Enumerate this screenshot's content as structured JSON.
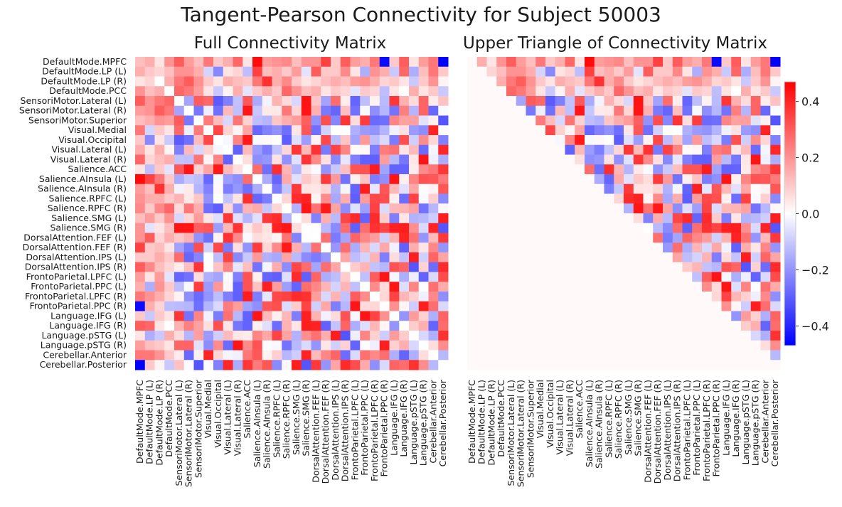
{
  "figure": {
    "title": "Tangent-Pearson Connectivity for Subject 50003"
  },
  "colors": {
    "negative": "#0000ff",
    "zero": "#ffffff",
    "positive": "#ff0000"
  },
  "chart_data": [
    {
      "type": "heatmap",
      "title": "Full Connectivity Matrix",
      "labels": [
        "DefaultMode.MPFC",
        "DefaultMode.LP (L)",
        "DefaultMode.LP (R)",
        "DefaultMode.PCC",
        "SensoriMotor.Lateral (L)",
        "SensoriMotor.Lateral (R)",
        "SensoriMotor.Superior",
        "Visual.Medial",
        "Visual.Occipital",
        "Visual.Lateral (L)",
        "Visual.Lateral (R)",
        "Salience.ACC",
        "Salience.AInsula (L)",
        "Salience.AInsula (R)",
        "Salience.RPFC (L)",
        "Salience.RPFC (R)",
        "Salience.SMG (L)",
        "Salience.SMG (R)",
        "DorsalAttention.FEF (L)",
        "DorsalAttention.FEF (R)",
        "DorsalAttention.IPS (L)",
        "DorsalAttention.IPS (R)",
        "FrontoParietal.LPFC (L)",
        "FrontoParietal.PPC (L)",
        "FrontoParietal.LPFC (R)",
        "FrontoParietal.PPC (R)",
        "Language.IFG (L)",
        "Language.IFG (R)",
        "Language.pSTG (L)",
        "Language.pSTG (R)",
        "Cerebellar.Anterior",
        "Cerebellar.Posterior"
      ],
      "y_tick_labels": [
        "DefaultMode.MPFC",
        "DefaultMode.LP (L)",
        "DefaultMode.LP (R)",
        "DefaultMode.PCC",
        "SensoriMotor.Lateral (L)",
        "SensoriMotor.Lateral (R)",
        "SensoriMotor.Superior",
        "Visual.Medial",
        "Visual.Occipital",
        "Visual.Lateral (L)",
        "Visual.Lateral (R)",
        "Salience.ACC",
        "Salience.AInsula (L)",
        "Salience.AInsula (R)",
        "Salience.RPFC (L)",
        "Salience.RPFC (R)",
        "Salience.SMG (L)",
        "Salience.SMG (R)",
        "DorsalAttention.FEF (L)",
        "DorsalAttention.FEF (R)",
        "DorsalAttention.IPS (L)",
        "DorsalAttention.IPS (R)",
        "FrontoParietal.LPFC (L)",
        "FrontoParietal.PPC (L)",
        "FrontoParietal.LPFC (R)",
        "FrontoParietal.PPC (R)",
        "Language.IFG (L)",
        "Language.IFG (R)",
        "Language.pSTG (L)",
        "Language.pSTG (R)",
        "Cerebellar.Anterior",
        "Cerebellar.Posterior"
      ],
      "matrix": "symmetric"
    },
    {
      "type": "heatmap",
      "title": "Upper Triangle of Connectivity Matrix",
      "labels": [
        "DefaultMode.MPFC",
        "DefaultMode.LP (L)",
        "DefaultMode.LP (R)",
        "DefaultMode.PCC",
        "SensoriMotor.Lateral (L)",
        "SensoriMotor.Lateral (R)",
        "SensoriMotor.Superior",
        "Visual.Medial",
        "Visual.Occipital",
        "Visual.Lateral (L)",
        "Visual.Lateral (R)",
        "Salience.ACC",
        "Salience.AInsula (L)",
        "Salience.AInsula (R)",
        "Salience.RPFC (L)",
        "Salience.RPFC (R)",
        "Salience.SMG (L)",
        "Salience.SMG (R)",
        "DorsalAttention.FEF (L)",
        "DorsalAttention.FEF (R)",
        "DorsalAttention.IPS (L)",
        "DorsalAttention.IPS (R)",
        "FrontoParietal.LPFC (L)",
        "FrontoParietal.PPC (L)",
        "FrontoParietal.LPFC (R)",
        "FrontoParietal.PPC (R)",
        "Language.IFG (L)",
        "Language.IFG (R)",
        "Language.pSTG (L)",
        "Language.pSTG (R)",
        "Cerebellar.Anterior",
        "Cerebellar.Posterior"
      ],
      "matrix": "upper_triangle_only"
    }
  ],
  "values": {
    "entries": [
      [
        0,
        0,
        0.12
      ],
      [
        0,
        1,
        0.15
      ],
      [
        0,
        2,
        0.05
      ],
      [
        0,
        3,
        0.2
      ],
      [
        0,
        4,
        0.3
      ],
      [
        0,
        5,
        0.18
      ],
      [
        0,
        6,
        0.12
      ],
      [
        0,
        7,
        0.25
      ],
      [
        0,
        8,
        0.1
      ],
      [
        0,
        9,
        0.15
      ],
      [
        0,
        10,
        0.28
      ],
      [
        0,
        11,
        0.05
      ],
      [
        0,
        12,
        0.45
      ],
      [
        0,
        13,
        0.18
      ],
      [
        0,
        14,
        0.2
      ],
      [
        0,
        15,
        0.22
      ],
      [
        0,
        16,
        0.12
      ],
      [
        0,
        17,
        0.2
      ],
      [
        0,
        18,
        0.2
      ],
      [
        0,
        19,
        0.35
      ],
      [
        0,
        20,
        0.1
      ],
      [
        0,
        21,
        0.3
      ],
      [
        0,
        22,
        0.18
      ],
      [
        0,
        23,
        0.15
      ],
      [
        0,
        24,
        0.25
      ],
      [
        0,
        25,
        -0.45
      ],
      [
        0,
        26,
        0.1
      ],
      [
        0,
        27,
        0.3
      ],
      [
        0,
        28,
        0.05
      ],
      [
        0,
        29,
        0.18
      ],
      [
        0,
        30,
        0.25
      ],
      [
        0,
        31,
        -0.48
      ],
      [
        1,
        1,
        0.1
      ],
      [
        1,
        2,
        0.08
      ],
      [
        1,
        3,
        0.12
      ],
      [
        1,
        4,
        0.2
      ],
      [
        1,
        5,
        0.2
      ],
      [
        1,
        6,
        0.15
      ],
      [
        1,
        7,
        -0.08
      ],
      [
        1,
        8,
        -0.22
      ],
      [
        1,
        9,
        0.05
      ],
      [
        1,
        10,
        0.08
      ],
      [
        1,
        11,
        -0.12
      ],
      [
        1,
        12,
        0.35
      ],
      [
        1,
        13,
        0.12
      ],
      [
        1,
        14,
        0.15
      ],
      [
        1,
        15,
        0.1
      ],
      [
        1,
        16,
        0.18
      ],
      [
        1,
        17,
        -0.05
      ],
      [
        1,
        18,
        0.3
      ],
      [
        1,
        19,
        0.1
      ],
      [
        1,
        20,
        0.1
      ],
      [
        1,
        21,
        0.22
      ],
      [
        1,
        22,
        0.05
      ],
      [
        1,
        23,
        -0.15
      ],
      [
        1,
        24,
        0.2
      ],
      [
        1,
        25,
        0.15
      ],
      [
        1,
        26,
        -0.1
      ],
      [
        1,
        27,
        0.28
      ],
      [
        1,
        28,
        -0.15
      ],
      [
        1,
        29,
        0.12
      ],
      [
        1,
        30,
        0.25
      ],
      [
        1,
        31,
        0.1
      ],
      [
        2,
        2,
        0.0
      ],
      [
        2,
        3,
        0.15
      ],
      [
        2,
        4,
        0.25
      ],
      [
        2,
        5,
        0.3
      ],
      [
        2,
        6,
        0.2
      ],
      [
        2,
        7,
        0.1
      ],
      [
        2,
        8,
        0.05
      ],
      [
        2,
        9,
        0.15
      ],
      [
        2,
        10,
        0.12
      ],
      [
        2,
        11,
        0.1
      ],
      [
        2,
        12,
        0.25
      ],
      [
        2,
        13,
        0.38
      ],
      [
        2,
        14,
        0.15
      ],
      [
        2,
        15,
        0.22
      ],
      [
        2,
        16,
        0.1
      ],
      [
        2,
        17,
        0.05
      ],
      [
        2,
        18,
        0.08
      ],
      [
        2,
        19,
        0.12
      ],
      [
        2,
        20,
        0.15
      ],
      [
        2,
        21,
        0.12
      ],
      [
        2,
        22,
        0.18
      ],
      [
        2,
        23,
        0.2
      ],
      [
        2,
        24,
        0.15
      ],
      [
        2,
        25,
        0.08
      ],
      [
        2,
        26,
        0.1
      ],
      [
        2,
        27,
        0.05
      ],
      [
        2,
        28,
        -0.1
      ],
      [
        2,
        29,
        0.1
      ],
      [
        2,
        30,
        0.2
      ],
      [
        2,
        31,
        0.02
      ],
      [
        3,
        3,
        0.0
      ],
      [
        3,
        4,
        0.28
      ],
      [
        3,
        5,
        0.25
      ],
      [
        3,
        6,
        0.18
      ],
      [
        3,
        7,
        0.05
      ],
      [
        3,
        8,
        -0.1
      ],
      [
        3,
        9,
        0.02
      ],
      [
        3,
        10,
        0.15
      ],
      [
        3,
        11,
        -0.05
      ],
      [
        3,
        12,
        0.1
      ],
      [
        3,
        13,
        0.15
      ],
      [
        3,
        14,
        0.1
      ],
      [
        3,
        15,
        0.28
      ],
      [
        3,
        16,
        0.2
      ],
      [
        3,
        17,
        0.12
      ],
      [
        3,
        18,
        0.15
      ],
      [
        3,
        19,
        0.05
      ],
      [
        3,
        20,
        0.1
      ],
      [
        3,
        21,
        0.08
      ],
      [
        3,
        22,
        -0.05
      ],
      [
        3,
        23,
        0.1
      ],
      [
        3,
        24,
        0.08
      ],
      [
        3,
        25,
        -0.12
      ],
      [
        3,
        26,
        0.05
      ],
      [
        3,
        27,
        0.0
      ],
      [
        3,
        28,
        0.15
      ],
      [
        3,
        29,
        0.05
      ],
      [
        3,
        30,
        0.1
      ],
      [
        3,
        31,
        -0.1
      ]
    ]
  }
}
